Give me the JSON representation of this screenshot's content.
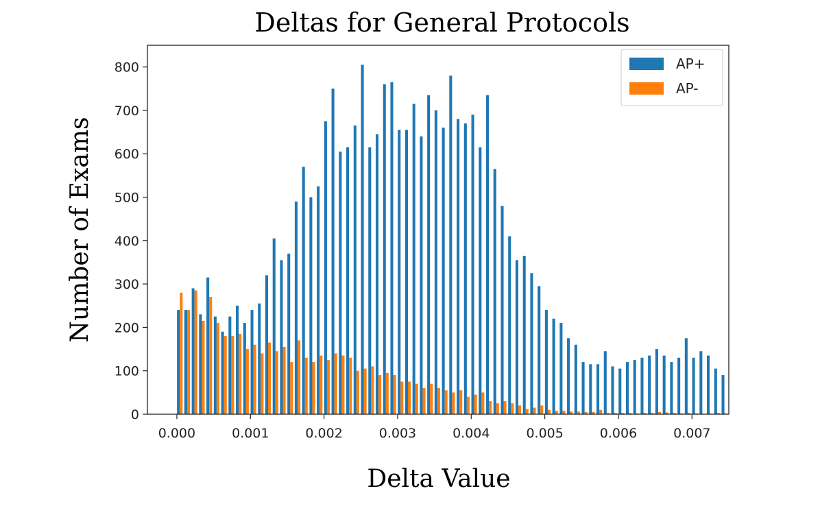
{
  "chart_data": {
    "type": "bar",
    "title": "Deltas for General Protocols",
    "xlabel": "Delta Value",
    "ylabel": "Number of Exams",
    "xlim": [
      -0.0004,
      0.0075
    ],
    "ylim": [
      0,
      850
    ],
    "bin_width": 0.0001,
    "x_ticks": [
      "0.000",
      "0.001",
      "0.002",
      "0.003",
      "0.004",
      "0.005",
      "0.006",
      "0.007"
    ],
    "y_ticks": [
      "0",
      "100",
      "200",
      "300",
      "400",
      "500",
      "600",
      "700",
      "800"
    ],
    "legend": {
      "position": "top-right",
      "entries": [
        "AP+",
        "AP-"
      ]
    },
    "series": [
      {
        "name": "AP+",
        "color": "#1f77b4",
        "values": [
          240,
          240,
          290,
          230,
          315,
          225,
          190,
          225,
          250,
          210,
          240,
          255,
          320,
          405,
          355,
          370,
          490,
          570,
          500,
          525,
          675,
          750,
          605,
          615,
          665,
          805,
          615,
          645,
          760,
          765,
          655,
          655,
          715,
          640,
          735,
          700,
          660,
          780,
          680,
          670,
          690,
          615,
          735,
          565,
          480,
          410,
          355,
          365,
          325,
          295,
          240,
          220,
          210,
          175,
          160,
          120,
          115,
          115,
          145,
          110,
          105,
          120,
          125,
          130,
          135,
          150,
          135,
          120,
          130,
          175,
          130,
          145,
          135,
          105,
          90
        ],
        "x_start": 0.0
      },
      {
        "name": "AP-",
        "color": "#ff7f0e",
        "values": [
          280,
          240,
          285,
          215,
          270,
          210,
          180,
          180,
          185,
          150,
          160,
          140,
          165,
          145,
          155,
          120,
          170,
          130,
          120,
          135,
          125,
          140,
          135,
          130,
          100,
          105,
          110,
          90,
          95,
          90,
          75,
          75,
          70,
          60,
          70,
          60,
          55,
          50,
          55,
          40,
          45,
          50,
          30,
          25,
          30,
          25,
          20,
          12,
          15,
          20,
          10,
          8,
          8,
          6,
          6,
          5,
          5,
          10,
          3,
          3,
          3,
          3,
          2,
          3,
          3,
          5,
          4,
          3,
          2,
          3,
          2,
          1,
          1,
          3,
          2
        ],
        "x_start": 0.0
      }
    ]
  }
}
